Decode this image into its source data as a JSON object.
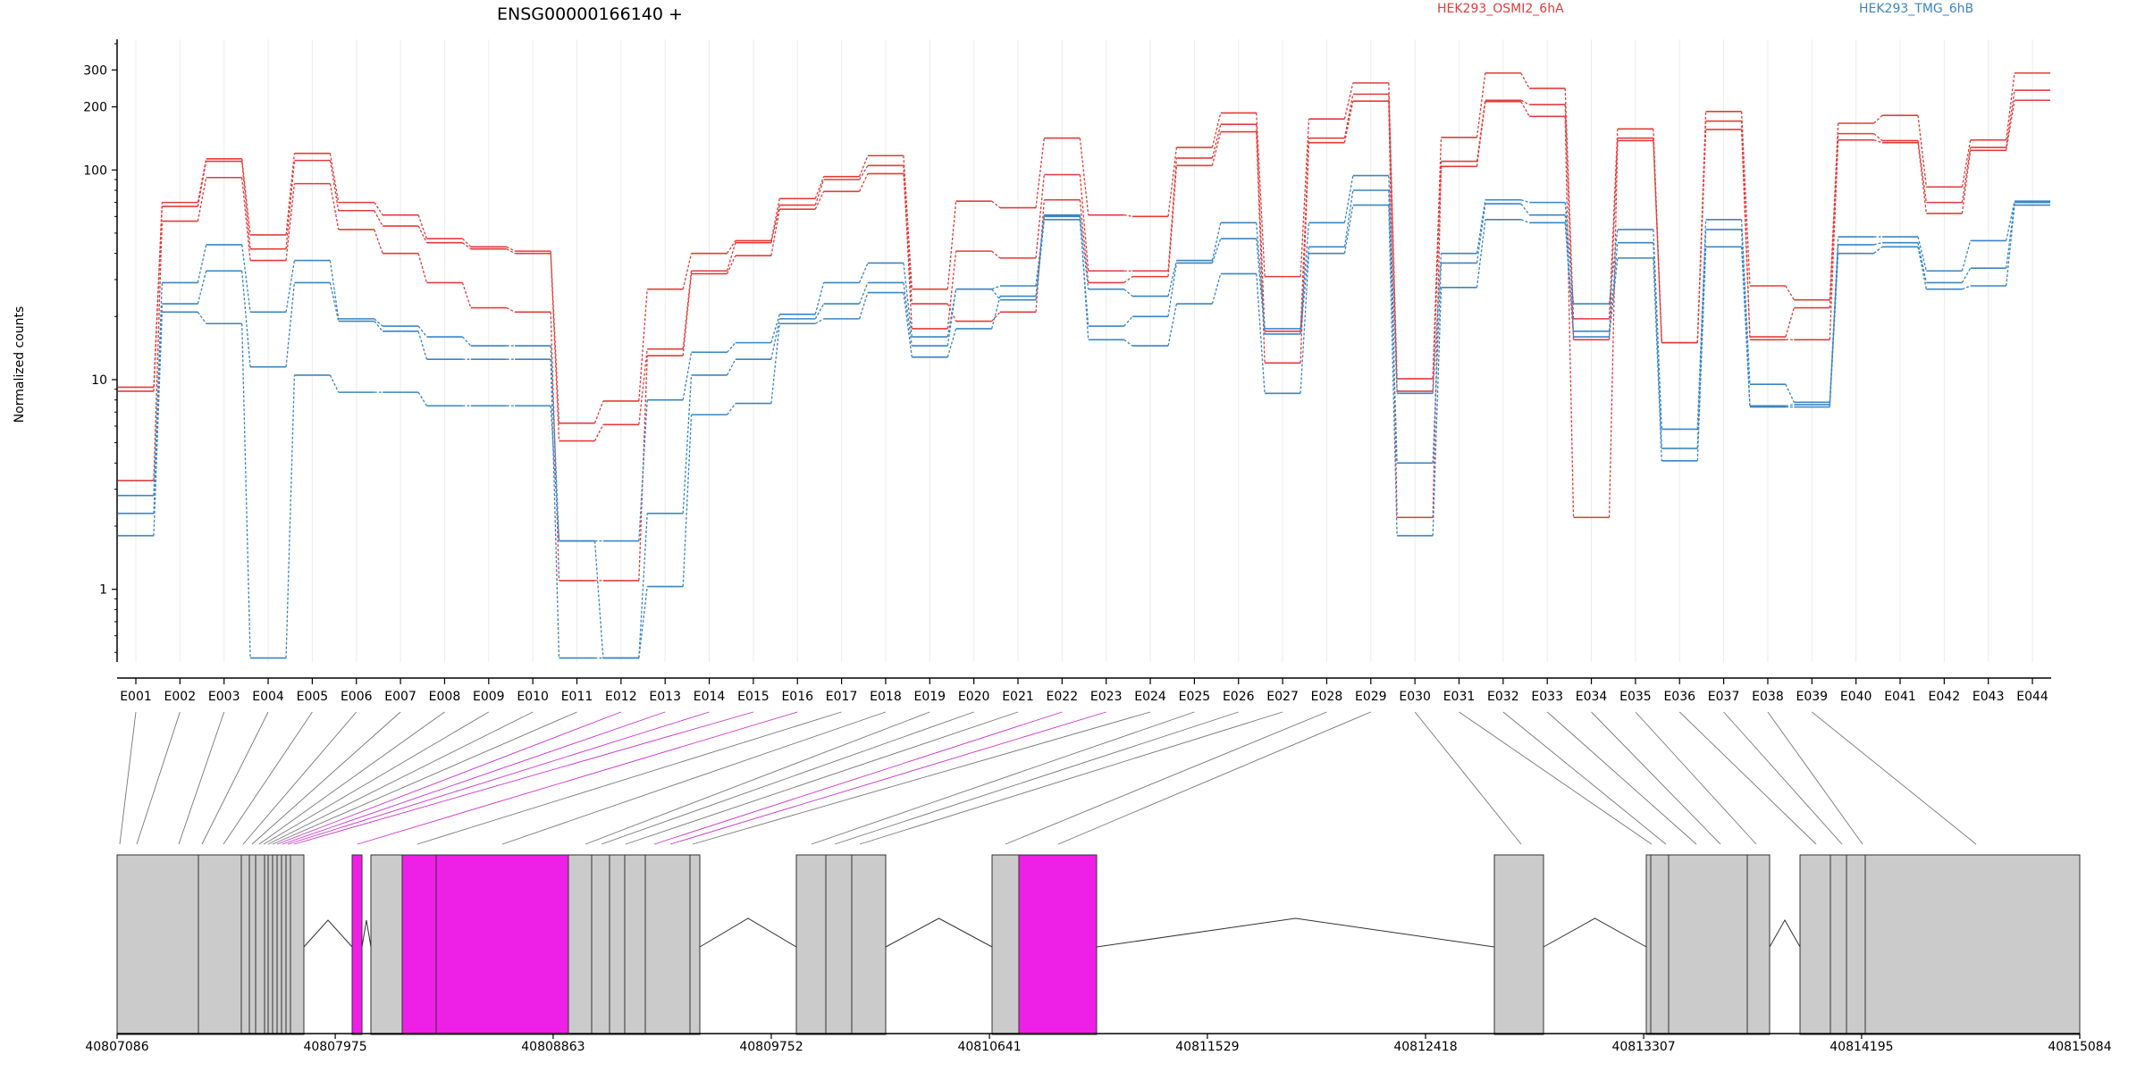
{
  "chart_data": {
    "type": "line",
    "title": "ENSG00000166140 +",
    "ylabel": "Normalized counts",
    "xlabel": "",
    "y_scale": "log",
    "ylim": [
      0.45,
      420
    ],
    "y_ticks": [
      1,
      10,
      100,
      200,
      300
    ],
    "grid": true,
    "legend_placement": "top-right",
    "colors": {
      "HEK293_OSMI2_6hA": "#e23b3b",
      "HEK293_TMG_6hB": "#3a85c2",
      "highlight": "#ee1fe6",
      "exon": "#cbcbcb"
    },
    "exons": [
      "E001",
      "E002",
      "E003",
      "E004",
      "E005",
      "E006",
      "E007",
      "E008",
      "E009",
      "E010",
      "E011",
      "E012",
      "E013",
      "E014",
      "E015",
      "E016",
      "E017",
      "E018",
      "E019",
      "E020",
      "E021",
      "E022",
      "E023",
      "E024",
      "E025",
      "E026",
      "E027",
      "E028",
      "E029",
      "E030",
      "E031",
      "E032",
      "E033",
      "E034",
      "E035",
      "E036",
      "E037",
      "E038",
      "E039",
      "E040",
      "E041",
      "E042",
      "E043",
      "E044"
    ],
    "series": [
      {
        "name": "HEK293_OSMI2_6hA",
        "group": "red",
        "values": [
          9.2,
          70,
          113,
          49,
          120,
          70,
          61,
          47,
          43,
          41,
          6.2,
          7.9,
          27,
          40,
          46,
          73,
          93,
          117,
          27,
          71,
          66,
          142,
          61,
          60,
          128,
          187,
          31,
          175,
          260,
          10.1,
          143,
          290,
          245,
          19.5,
          157,
          15,
          190,
          28,
          24,
          167,
          182,
          83,
          139,
          290
        ]
      },
      {
        "name": "HEK293_OSMI2_6hA",
        "group": "red",
        "values": [
          8.8,
          67,
          110,
          42,
          111,
          64,
          54,
          45,
          42,
          40,
          5.1,
          6.1,
          14,
          33,
          45,
          68,
          90,
          105,
          17.5,
          41,
          38,
          95,
          33,
          33,
          114,
          165,
          17,
          142,
          230,
          8.8,
          110,
          215,
          205,
          15.5,
          142,
          15,
          171,
          16,
          22,
          149,
          138,
          70,
          128,
          240
        ]
      },
      {
        "name": "HEK293_OSMI2_6hA",
        "group": "red",
        "values": [
          3.3,
          57,
          92,
          37,
          86,
          52,
          40,
          29,
          22,
          21,
          1.1,
          1.1,
          13,
          32,
          39,
          65,
          79,
          96,
          23,
          19,
          21,
          72,
          29,
          31,
          105,
          152,
          12,
          135,
          213,
          2.2,
          104,
          212,
          180,
          2.2,
          138,
          15,
          156,
          15.5,
          15.5,
          139,
          135,
          62,
          124,
          215
        ]
      },
      {
        "name": "HEK293_TMG_6hB",
        "group": "blue",
        "values": [
          2.8,
          29,
          44,
          21,
          37,
          19.5,
          18,
          16,
          14.5,
          14.5,
          1.7,
          1.7,
          8,
          13.5,
          15,
          20.5,
          29,
          36,
          16,
          27,
          28,
          60,
          27,
          25,
          37,
          56,
          17.5,
          56,
          94,
          8.6,
          40,
          72,
          70,
          23,
          52,
          5.8,
          58,
          9.5,
          7.8,
          48,
          48,
          33,
          46,
          71
        ]
      },
      {
        "name": "HEK293_TMG_6hB",
        "group": "blue",
        "values": [
          2.3,
          23,
          33,
          11.5,
          29,
          19,
          17,
          12.5,
          12.5,
          12.5,
          0.47,
          0.47,
          2.3,
          10.5,
          12.5,
          19.5,
          23,
          29,
          14.5,
          27,
          24,
          58,
          18,
          20,
          36,
          47,
          16.5,
          43,
          80,
          4,
          36,
          69,
          61,
          17,
          45,
          4.7,
          52,
          7.5,
          7.6,
          44,
          45,
          29,
          34,
          70
        ]
      },
      {
        "name": "HEK293_TMG_6hB",
        "group": "blue",
        "values": [
          1.8,
          21,
          18.5,
          0.47,
          10.5,
          8.7,
          8.7,
          7.5,
          7.5,
          7.5,
          1.7,
          0.47,
          1.03,
          6.8,
          7.7,
          18.5,
          19.5,
          26,
          12.8,
          17.5,
          25,
          61,
          15.5,
          14.5,
          23,
          32,
          8.6,
          40,
          68,
          1.8,
          27.5,
          58,
          56,
          16,
          38,
          4.1,
          43,
          7.4,
          7.4,
          40,
          43,
          27,
          28,
          68
        ]
      }
    ],
    "genome_ticks": [
      "40807086",
      "40807975",
      "40808863",
      "40809752",
      "40810641",
      "40811529",
      "40812418",
      "40813307",
      "40814195",
      "40815084"
    ],
    "genome_range": [
      40807086,
      40815084
    ],
    "highlighted_exons": [
      "E012",
      "E013",
      "E014",
      "E015",
      "E016",
      "E022",
      "E023"
    ]
  }
}
